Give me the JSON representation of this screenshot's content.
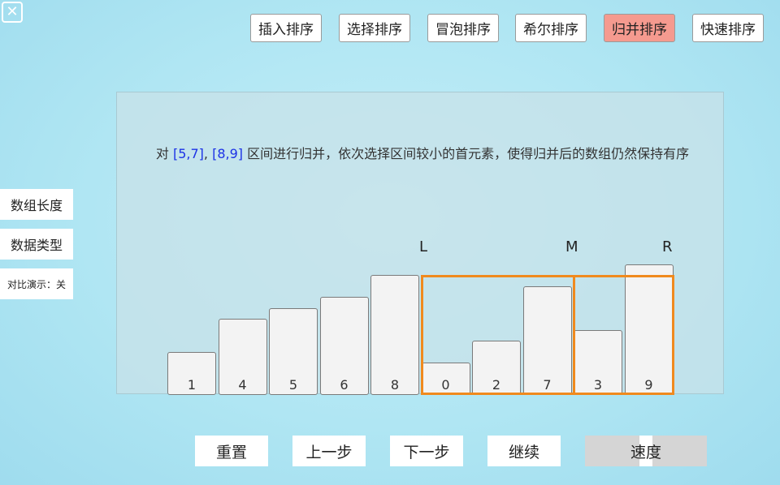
{
  "close_label": "✕",
  "tabs": [
    {
      "label": "插入排序",
      "active": false
    },
    {
      "label": "选择排序",
      "active": false
    },
    {
      "label": "冒泡排序",
      "active": false
    },
    {
      "label": "希尔排序",
      "active": false
    },
    {
      "label": "归并排序",
      "active": true
    },
    {
      "label": "快速排序",
      "active": false
    }
  ],
  "sidebar": {
    "array_length": "数组长度",
    "data_type": "数据类型",
    "compare_demo": "对比演示：关"
  },
  "description": {
    "prefix": "对 ",
    "range1": "[5,7]",
    "sep": ", ",
    "range2": "[8,9]",
    "suffix": " 区间进行归并，依次选择区间较小的首元素，使得归并后的数组仍然保持有序"
  },
  "array": [
    1,
    4,
    5,
    6,
    8,
    0,
    2,
    7,
    3,
    9
  ],
  "markers": {
    "left": "L",
    "mid": "M",
    "right": "R"
  },
  "controls": {
    "reset": "重置",
    "prev": "上一步",
    "next": "下一步",
    "continue": "继续",
    "speed": "速度",
    "speed_level": 0.5
  },
  "colors": {
    "active_tab": "#f59a8f",
    "highlight_text": "#1c32e6",
    "range_border": "#f08a1e"
  }
}
